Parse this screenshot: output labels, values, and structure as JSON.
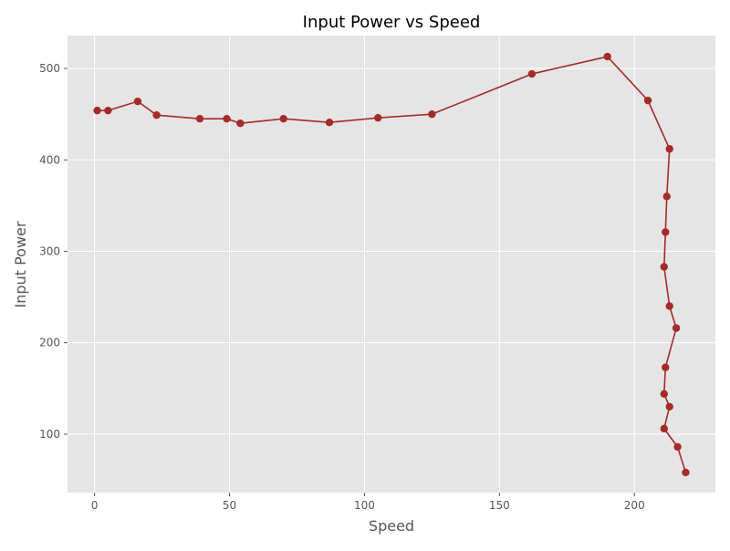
{
  "chart_data": {
    "type": "line",
    "title": "Input Power vs Speed",
    "xlabel": "Speed",
    "ylabel": "Input Power",
    "xlim": [
      -10,
      230
    ],
    "ylim": [
      36,
      536
    ],
    "xticks": [
      0,
      50,
      100,
      150,
      200
    ],
    "yticks": [
      100,
      200,
      300,
      400,
      500
    ],
    "grid": true,
    "series": [
      {
        "color": "#a52a2a",
        "marker": "circle",
        "points": [
          {
            "x": 1,
            "y": 454
          },
          {
            "x": 5,
            "y": 454
          },
          {
            "x": 16,
            "y": 464
          },
          {
            "x": 23,
            "y": 449
          },
          {
            "x": 39,
            "y": 445
          },
          {
            "x": 49,
            "y": 445
          },
          {
            "x": 54,
            "y": 440
          },
          {
            "x": 70,
            "y": 445
          },
          {
            "x": 87,
            "y": 441
          },
          {
            "x": 105,
            "y": 446
          },
          {
            "x": 125,
            "y": 450
          },
          {
            "x": 162,
            "y": 494
          },
          {
            "x": 190,
            "y": 513
          },
          {
            "x": 205,
            "y": 465
          },
          {
            "x": 213,
            "y": 412
          },
          {
            "x": 212,
            "y": 360
          },
          {
            "x": 211.5,
            "y": 321
          },
          {
            "x": 211,
            "y": 283
          },
          {
            "x": 213,
            "y": 240
          },
          {
            "x": 215.5,
            "y": 216
          },
          {
            "x": 211.5,
            "y": 173
          },
          {
            "x": 211,
            "y": 144
          },
          {
            "x": 213,
            "y": 130
          },
          {
            "x": 211,
            "y": 106
          },
          {
            "x": 216,
            "y": 86
          },
          {
            "x": 219,
            "y": 58
          }
        ]
      }
    ]
  },
  "colors": {
    "plot_background": "#e5e5e5",
    "grid": "#ffffff",
    "series_line": "#a52a2a",
    "text": "#555555",
    "title": "#000000"
  }
}
